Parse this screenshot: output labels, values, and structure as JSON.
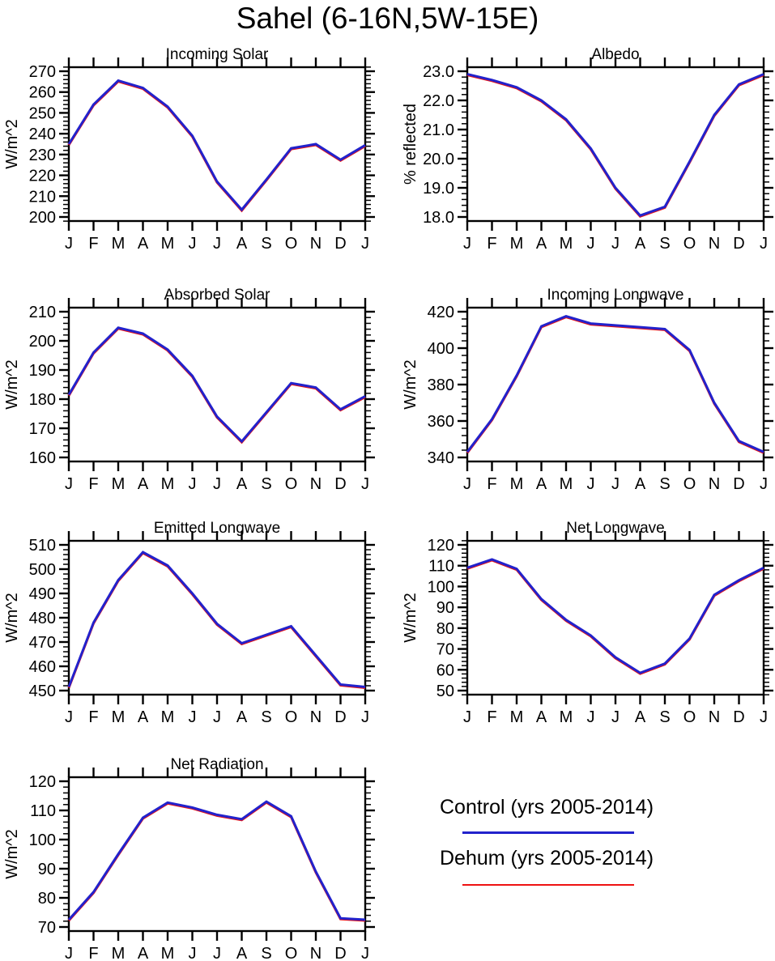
{
  "page_title": "Sahel (6-16N,5W-15E)",
  "colors": {
    "control": "#2222cc",
    "dehum": "#ee1111",
    "axis": "#000000",
    "background": "#ffffff"
  },
  "legend": {
    "items": [
      {
        "label": "Control (yrs 2005-2014)",
        "color": "#2222cc"
      },
      {
        "label": "Dehum (yrs 2005-2014)",
        "color": "#ee1111"
      }
    ]
  },
  "chart_data": [
    {
      "type": "line",
      "title": "Incoming Solar",
      "ylabel": "W/m^2",
      "ylim": [
        200,
        270
      ],
      "ytick_step": 10,
      "yticks": [
        200,
        210,
        220,
        230,
        240,
        250,
        260,
        270
      ],
      "grid": false,
      "categories": [
        "J",
        "F",
        "M",
        "A",
        "M",
        "J",
        "J",
        "A",
        "S",
        "O",
        "N",
        "D",
        "J"
      ],
      "series": [
        {
          "name": "Control (yrs 2005-2014)",
          "color": "#2222cc",
          "values": [
            235,
            254,
            265.5,
            262,
            253,
            239,
            217,
            203.5,
            218,
            233,
            235,
            227.5,
            234.5
          ]
        },
        {
          "name": "Dehum (yrs 2005-2014)",
          "color": "#ee1111",
          "values": [
            235,
            254,
            265.5,
            262,
            253,
            239,
            217,
            203.5,
            218,
            233,
            235,
            227.5,
            234.5
          ]
        }
      ]
    },
    {
      "type": "line",
      "title": "Albedo",
      "ylabel": "% reflected",
      "ylim": [
        18.0,
        23.0
      ],
      "ytick_step": 1.0,
      "yticks": [
        "18.0",
        "19.0",
        "20.0",
        "21.0",
        "22.0",
        "23.0"
      ],
      "grid": false,
      "categories": [
        "J",
        "F",
        "M",
        "A",
        "M",
        "J",
        "J",
        "A",
        "S",
        "O",
        "N",
        "D",
        "J"
      ],
      "series": [
        {
          "name": "Control (yrs 2005-2014)",
          "color": "#2222cc",
          "values": [
            22.9,
            22.7,
            22.45,
            22.0,
            21.35,
            20.35,
            19.0,
            18.05,
            18.35,
            19.9,
            21.5,
            22.55,
            22.9
          ]
        },
        {
          "name": "Dehum (yrs 2005-2014)",
          "color": "#ee1111",
          "values": [
            22.9,
            22.7,
            22.45,
            22.0,
            21.35,
            20.35,
            19.0,
            18.05,
            18.35,
            19.9,
            21.5,
            22.55,
            22.9
          ]
        }
      ]
    },
    {
      "type": "line",
      "title": "Absorbed Solar",
      "ylabel": "W/m^2",
      "ylim": [
        160,
        210
      ],
      "ytick_step": 10,
      "yticks": [
        160,
        170,
        180,
        190,
        200,
        210
      ],
      "grid": false,
      "categories": [
        "J",
        "F",
        "M",
        "A",
        "M",
        "J",
        "J",
        "A",
        "S",
        "O",
        "N",
        "D",
        "J"
      ],
      "series": [
        {
          "name": "Control (yrs 2005-2014)",
          "color": "#2222cc",
          "values": [
            181.5,
            196,
            204.5,
            202.5,
            197,
            188,
            174,
            165.5,
            175.5,
            185.5,
            184,
            176.5,
            181
          ]
        },
        {
          "name": "Dehum (yrs 2005-2014)",
          "color": "#ee1111",
          "values": [
            181.5,
            196,
            204.5,
            202.5,
            197,
            188,
            174,
            165.5,
            175.5,
            185.5,
            184,
            176.5,
            181
          ]
        }
      ]
    },
    {
      "type": "line",
      "title": "Incoming Longwave",
      "ylabel": "W/m^2",
      "ylim": [
        340,
        420
      ],
      "ytick_step": 20,
      "yticks": [
        340,
        360,
        380,
        400,
        420
      ],
      "grid": false,
      "categories": [
        "J",
        "F",
        "M",
        "A",
        "M",
        "J",
        "J",
        "A",
        "S",
        "O",
        "N",
        "D",
        "J"
      ],
      "series": [
        {
          "name": "Control (yrs 2005-2014)",
          "color": "#2222cc",
          "values": [
            343,
            361,
            385,
            412,
            417.5,
            413.5,
            412.5,
            411.5,
            410.5,
            399,
            370,
            349,
            343
          ]
        },
        {
          "name": "Dehum (yrs 2005-2014)",
          "color": "#ee1111",
          "values": [
            343,
            361,
            385,
            412,
            417.5,
            413.5,
            412.5,
            411.5,
            410.5,
            399,
            370,
            349,
            343
          ]
        }
      ]
    },
    {
      "type": "line",
      "title": "Emitted Longwave",
      "ylabel": "W/m^2",
      "ylim": [
        450,
        510
      ],
      "ytick_step": 10,
      "yticks": [
        450,
        460,
        470,
        480,
        490,
        500,
        510
      ],
      "grid": false,
      "categories": [
        "J",
        "F",
        "M",
        "A",
        "M",
        "J",
        "J",
        "A",
        "S",
        "O",
        "N",
        "D",
        "J"
      ],
      "series": [
        {
          "name": "Control (yrs 2005-2014)",
          "color": "#2222cc",
          "values": [
            451.5,
            478,
            495.5,
            507,
            501.5,
            490,
            477.5,
            469.5,
            473,
            476.5,
            464.5,
            452.5,
            451.5
          ]
        },
        {
          "name": "Dehum (yrs 2005-2014)",
          "color": "#ee1111",
          "values": [
            451.5,
            478,
            495.5,
            507,
            501.5,
            490,
            477.5,
            469.5,
            473,
            476.5,
            464.5,
            452.5,
            451.5
          ]
        }
      ]
    },
    {
      "type": "line",
      "title": "Net Longwave",
      "ylabel": "W/m^2",
      "ylim": [
        50,
        120
      ],
      "ytick_step": 10,
      "yticks": [
        50,
        60,
        70,
        80,
        90,
        100,
        110,
        120
      ],
      "grid": false,
      "categories": [
        "J",
        "F",
        "M",
        "A",
        "M",
        "J",
        "J",
        "A",
        "S",
        "O",
        "N",
        "D",
        "J"
      ],
      "series": [
        {
          "name": "Control (yrs 2005-2014)",
          "color": "#2222cc",
          "values": [
            109,
            113,
            108.5,
            94,
            84,
            76.5,
            66,
            58.5,
            63,
            75,
            96,
            103,
            109
          ]
        },
        {
          "name": "Dehum (yrs 2005-2014)",
          "color": "#ee1111",
          "values": [
            109,
            113,
            108.5,
            94,
            84,
            76.5,
            66,
            58.5,
            63,
            75,
            96,
            103,
            109
          ]
        }
      ]
    },
    {
      "type": "line",
      "title": "Net Radiation",
      "ylabel": "W/m^2",
      "ylim": [
        70,
        120
      ],
      "ytick_step": 10,
      "yticks": [
        70,
        80,
        90,
        100,
        110,
        120
      ],
      "grid": false,
      "categories": [
        "J",
        "F",
        "M",
        "A",
        "M",
        "J",
        "J",
        "A",
        "S",
        "O",
        "N",
        "D",
        "J"
      ],
      "series": [
        {
          "name": "Control (yrs 2005-2014)",
          "color": "#2222cc",
          "values": [
            72.5,
            82,
            95,
            107.5,
            112.7,
            111,
            108.5,
            107,
            113,
            108,
            89,
            73,
            72.5
          ]
        },
        {
          "name": "Dehum (yrs 2005-2014)",
          "color": "#ee1111",
          "values": [
            72.5,
            82,
            95,
            107.5,
            112.7,
            111,
            108.5,
            107,
            113,
            108,
            89,
            73,
            72.5
          ]
        }
      ]
    }
  ]
}
